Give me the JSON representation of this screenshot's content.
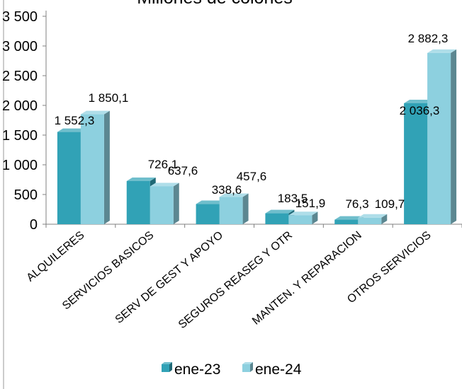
{
  "chart_data": {
    "type": "bar",
    "title": "Millones de colones",
    "categories": [
      "ALQUILERES",
      "SERVICIOS BASICOS",
      "SERV DE GEST Y APOYO",
      "SEGUROS REASEG Y OTR",
      "MANTEN. Y REPARACION",
      "OTROS SERVICIOS"
    ],
    "series": [
      {
        "name": "ene-23",
        "values": [
          1552.3,
          726.1,
          338.6,
          183.5,
          76.3,
          2036.3
        ],
        "labels": [
          "1 552,3",
          "726,1",
          "338,6",
          "183,5",
          "76,3",
          "2 036,3"
        ],
        "color": "#31A2B6"
      },
      {
        "name": "ene-24",
        "values": [
          1850.1,
          637.6,
          457.6,
          151.9,
          109.7,
          2882.3
        ],
        "labels": [
          "1 850,1",
          "637,6",
          "457,6",
          "151,9",
          "109,7",
          "2 882,3"
        ],
        "color": "#8DD0DF"
      }
    ],
    "yticks": [
      "0",
      "500",
      "1 000",
      "1 500",
      "2 000",
      "2 500",
      "3 000",
      "3 500"
    ],
    "ylim": [
      0,
      3500
    ],
    "grid": false,
    "legend": "bottom"
  }
}
